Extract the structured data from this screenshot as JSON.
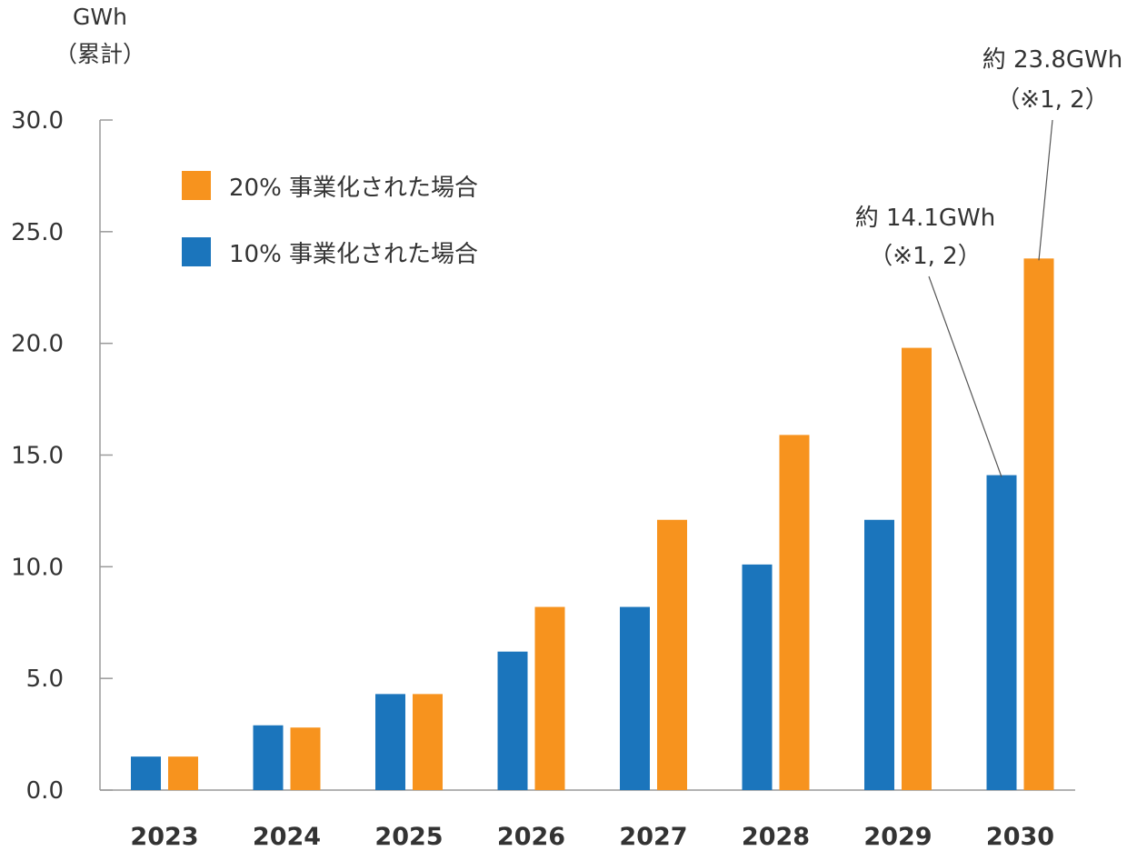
{
  "chart_data": {
    "type": "bar",
    "y_unit": "GWh",
    "y_unit_note": "（累計）",
    "categories": [
      "2023",
      "2024",
      "2025",
      "2026",
      "2027",
      "2028",
      "2029",
      "2030"
    ],
    "series": [
      {
        "name": "10% 事業化された場合",
        "color": "#1b75bc",
        "values": [
          1.5,
          2.9,
          4.3,
          6.2,
          8.2,
          10.1,
          12.1,
          14.1
        ]
      },
      {
        "name": "20% 事業化された場合",
        "color": "#f7931e",
        "values": [
          1.5,
          2.8,
          4.3,
          8.2,
          12.1,
          15.9,
          19.8,
          23.8
        ]
      }
    ],
    "ylim": [
      0,
      30
    ],
    "yticks": [
      "0.0",
      "5.0",
      "10.0",
      "15.0",
      "20.0",
      "25.0",
      "30.0"
    ],
    "legend_position": "top-left",
    "legend_order": [
      1,
      0
    ],
    "annotations": [
      {
        "line1": "約 14.1GWh",
        "line2": "（※1, 2）",
        "series": 0,
        "category": "2030"
      },
      {
        "line1": "約 23.8GWh",
        "line2": "（※1, 2）",
        "series": 1,
        "category": "2030"
      }
    ]
  }
}
